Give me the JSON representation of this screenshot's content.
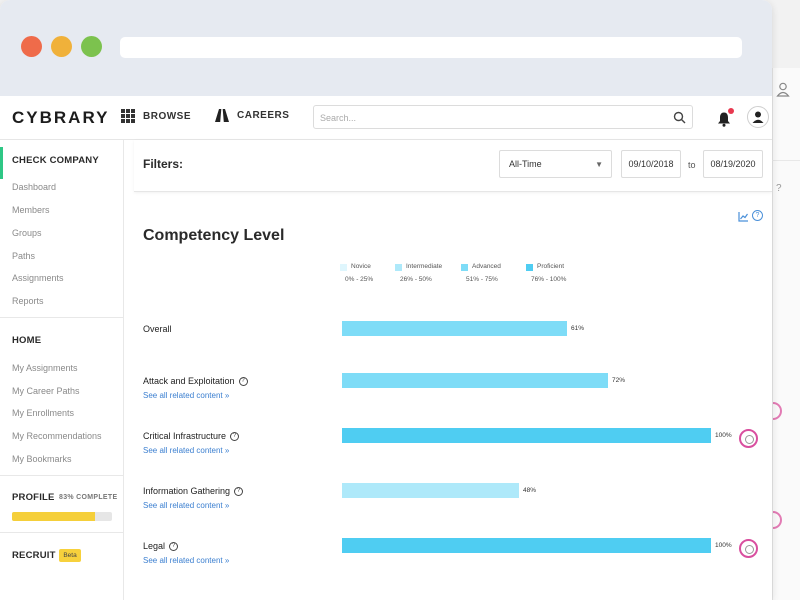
{
  "app": {
    "logo": "CYBRARY"
  },
  "nav": {
    "browse": "BROWSE",
    "careers": "CAREERS",
    "search_placeholder": "Search..."
  },
  "sidebar": {
    "company": "CHECK COMPANY",
    "company_items": [
      "Dashboard",
      "Members",
      "Groups",
      "Paths",
      "Assignments",
      "Reports"
    ],
    "home": "HOME",
    "home_items": [
      "My Assignments",
      "My Career Paths",
      "My Enrollments",
      "My Recommendations",
      "My Bookmarks"
    ],
    "profile": "PROFILE",
    "profile_complete": "83% COMPLETE",
    "profile_progress": 0.83,
    "recruit": "RECRUIT",
    "beta": "Beta"
  },
  "filters": {
    "label": "Filters:",
    "range": "All-Time",
    "from": "09/10/2018",
    "to_label": "to",
    "to": "08/19/2020"
  },
  "competency": {
    "title": "Competency Level",
    "legend": [
      {
        "name": "Novice",
        "range": "0% - 25%",
        "color": "#dff6fd"
      },
      {
        "name": "Intermediate",
        "range": "26% - 50%",
        "color": "#aee9fa"
      },
      {
        "name": "Advanced",
        "range": "51% - 75%",
        "color": "#7edcf7"
      },
      {
        "name": "Proficient",
        "range": "76% - 100%",
        "color": "#4fcdf2"
      }
    ],
    "link_text": "See all related content",
    "rows": [
      {
        "label": "Overall",
        "value": 61,
        "value_label": "61%",
        "color": "#7edcf7",
        "help": false,
        "link": false,
        "badge": false
      },
      {
        "label": "Attack and Exploitation",
        "value": 72,
        "value_label": "72%",
        "color": "#7edcf7",
        "help": true,
        "link": true,
        "badge": false
      },
      {
        "label": "Critical Infrastructure",
        "value": 100,
        "value_label": "100%",
        "color": "#4fcdf2",
        "help": true,
        "link": true,
        "badge": true
      },
      {
        "label": "Information Gathering",
        "value": 48,
        "value_label": "48%",
        "color": "#aee9fa",
        "help": true,
        "link": true,
        "badge": false
      },
      {
        "label": "Legal",
        "value": 100,
        "value_label": "100%",
        "color": "#4fcdf2",
        "help": true,
        "link": true,
        "badge": true
      }
    ]
  }
}
